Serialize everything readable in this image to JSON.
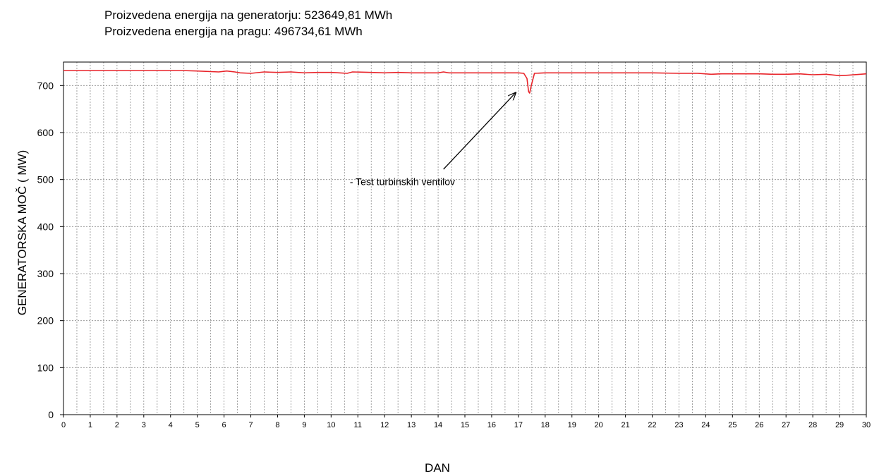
{
  "header": {
    "line1": "Proizvedena energija na generatorju: 523649,81  MWh",
    "line2": "Proizvedena energija na pragu: 496734,61  MWh"
  },
  "chart_data": {
    "type": "line",
    "ylabel": "GENERATORSKA MOČ  ( MW)",
    "xlabel": "DAN",
    "xlim": [
      0,
      30
    ],
    "ylim": [
      0,
      750
    ],
    "x_ticks": [
      0,
      1,
      2,
      3,
      4,
      5,
      6,
      7,
      8,
      9,
      10,
      11,
      12,
      13,
      14,
      15,
      16,
      17,
      18,
      19,
      20,
      21,
      22,
      23,
      24,
      25,
      26,
      27,
      28,
      29,
      30
    ],
    "y_ticks": [
      0,
      100,
      200,
      300,
      400,
      500,
      600,
      700
    ],
    "grid_vertical_step": 0.5,
    "grid": true,
    "line_color": "#e8242a",
    "series": [
      {
        "x": [
          0,
          1,
          2,
          3,
          4.4,
          5,
          5.8,
          6.1,
          6.4,
          6.6,
          7,
          7.5,
          8,
          8.5,
          9,
          9.5,
          10,
          10.3,
          10.6,
          10.8,
          11.5,
          12,
          12.5,
          13,
          14,
          14.2,
          14.4,
          15,
          16,
          17,
          17.2,
          17.32,
          17.38,
          17.42,
          17.48,
          17.6,
          18,
          19,
          20,
          21,
          22,
          23,
          23.7,
          24.2,
          24.6,
          25,
          25.5,
          26,
          26.5,
          27,
          27.5,
          28,
          28.5,
          29,
          29.3,
          30
        ],
        "y": [
          732,
          732,
          732,
          732,
          732,
          731,
          729,
          731,
          729,
          727,
          726,
          729,
          728,
          729,
          727,
          728,
          728,
          727,
          726,
          729,
          728,
          727,
          728,
          727,
          727,
          729,
          727,
          727,
          727,
          727,
          726,
          715,
          687,
          684,
          700,
          726,
          727,
          727,
          727,
          727,
          727,
          726,
          726,
          724,
          725,
          725,
          725,
          725,
          724,
          724,
          725,
          723,
          724,
          721,
          722,
          725
        ]
      }
    ],
    "annotations": [
      {
        "text": "- Test turbinskih ventilov",
        "x": 10.7,
        "y": 496,
        "arrow_from": [
          14.2,
          522
        ],
        "arrow_to": [
          16.9,
          685
        ]
      }
    ]
  }
}
